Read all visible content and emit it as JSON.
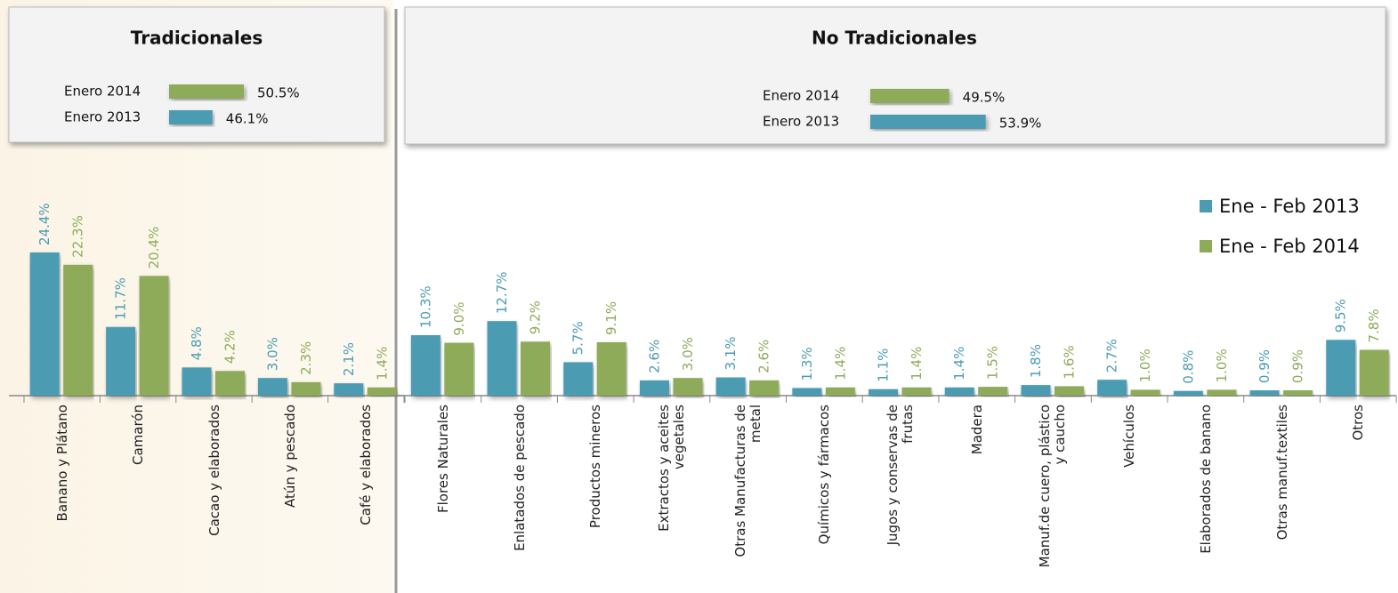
{
  "chart_data": [
    {
      "type": "bar",
      "title": "Tradicionales",
      "summary": {
        "categories": [
          "Enero 2014",
          "Enero 2013"
        ],
        "values": [
          50.5,
          46.1
        ],
        "value_labels": [
          "50.5%",
          "46.1%"
        ],
        "colors": [
          "#8eab5a",
          "#4b9cb3"
        ],
        "xlim": [
          40,
          55
        ]
      },
      "categories": [
        "Banano y Plátano",
        "Camarón",
        "Cacao y elaborados",
        "Atún y pescado",
        "Café y elaborados"
      ],
      "ylim": [
        0,
        30
      ],
      "series": [
        {
          "color": "#4b9cb3",
          "values": [
            24.4,
            11.7,
            4.8,
            3.0,
            2.1
          ],
          "value_labels": [
            "24.4%",
            "11.7%",
            "4.8%",
            "3.0%",
            "2.1%"
          ]
        },
        {
          "color": "#8eab5a",
          "values": [
            22.3,
            20.4,
            4.2,
            2.3,
            1.4
          ],
          "value_labels": [
            "22.3%",
            "20.4%",
            "4.2%",
            "2.3%",
            "1.4%"
          ]
        }
      ]
    },
    {
      "type": "bar",
      "title": "No Tradicionales",
      "summary": {
        "categories": [
          "Enero 2014",
          "Enero 2013"
        ],
        "values": [
          49.5,
          53.9
        ],
        "value_labels": [
          "49.5%",
          "53.9%"
        ],
        "colors": [
          "#8eab5a",
          "#4b9cb3"
        ],
        "xlim": [
          40,
          55
        ]
      },
      "categories": [
        "Flores Naturales",
        "Enlatados de pescado",
        "Productos mineros",
        "Extractos y aceites vegetales",
        "Otras Manufacturas de metal",
        "Químicos y fármacos",
        "Jugos y conservas de frutas",
        "Madera",
        "Manuf.de cuero, plástico y caucho",
        "Vehículos",
        "Elaborados de banano",
        "Otras manuf.textiles",
        "Otros"
      ],
      "ylim": [
        0,
        30
      ],
      "legend": "right",
      "series": [
        {
          "name": "Ene - Feb 2013",
          "color": "#4b9cb3",
          "values": [
            10.3,
            12.7,
            5.7,
            2.6,
            3.1,
            1.3,
            1.1,
            1.4,
            1.8,
            2.7,
            0.8,
            0.9,
            9.5
          ],
          "value_labels": [
            "10.3%",
            "12.7%",
            "5.7%",
            "2.6%",
            "3.1%",
            "1.3%",
            "1.1%",
            "1.4%",
            "1.8%",
            "2.7%",
            "0.8%",
            "0.9%",
            "9.5%"
          ]
        },
        {
          "name": "Ene - Feb 2014",
          "color": "#8eab5a",
          "values": [
            9.0,
            9.2,
            9.1,
            3.0,
            2.6,
            1.4,
            1.4,
            1.5,
            1.6,
            1.0,
            1.0,
            0.9,
            7.8
          ],
          "value_labels": [
            "9.0%",
            "9.2%",
            "9.1%",
            "3.0%",
            "2.6%",
            "1.4%",
            "1.4%",
            "1.5%",
            "1.6%",
            "1.0%",
            "1.0%",
            "0.9%",
            "7.8%"
          ]
        }
      ]
    }
  ]
}
